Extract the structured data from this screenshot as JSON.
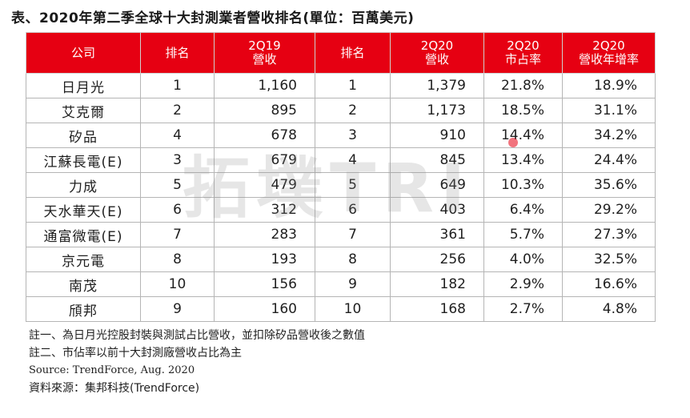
{
  "title": "表、2020年第二季全球十大封測業者營收排名(單位：百萬美元)",
  "headers": [
    [
      "公司"
    ],
    [
      "排名"
    ],
    [
      "2Q19",
      "營收"
    ],
    [
      "排名"
    ],
    [
      "2Q20",
      "營收"
    ],
    [
      "2Q20",
      "市占率"
    ],
    [
      "2Q20",
      "營收年增率"
    ]
  ],
  "rows": [
    {
      "company": "日月光",
      "rank_2q19": "1",
      "rev_2q19": "1,160",
      "rank_2q20": "1",
      "rev_2q20": "1,379",
      "share": "21.8%",
      "yoy": "18.9%"
    },
    {
      "company": "艾克爾",
      "rank_2q19": "2",
      "rev_2q19": "895",
      "rank_2q20": "2",
      "rev_2q20": "1,173",
      "share": "18.5%",
      "yoy": "31.1%"
    },
    {
      "company": "矽品",
      "rank_2q19": "4",
      "rev_2q19": "678",
      "rank_2q20": "3",
      "rev_2q20": "910",
      "share": "14.4%",
      "yoy": "34.2%"
    },
    {
      "company": "江蘇長電(E)",
      "rank_2q19": "3",
      "rev_2q19": "679",
      "rank_2q20": "4",
      "rev_2q20": "845",
      "share": "13.4%",
      "yoy": "24.4%"
    },
    {
      "company": "力成",
      "rank_2q19": "5",
      "rev_2q19": "479",
      "rank_2q20": "5",
      "rev_2q20": "649",
      "share": "10.3%",
      "yoy": "35.6%"
    },
    {
      "company": "天水華天(E)",
      "rank_2q19": "6",
      "rev_2q19": "312",
      "rank_2q20": "6",
      "rev_2q20": "403",
      "share": "6.4%",
      "yoy": "29.2%"
    },
    {
      "company": "通富微電(E)",
      "rank_2q19": "7",
      "rev_2q19": "283",
      "rank_2q20": "7",
      "rev_2q20": "361",
      "share": "5.7%",
      "yoy": "27.3%"
    },
    {
      "company": "京元電",
      "rank_2q19": "8",
      "rev_2q19": "193",
      "rank_2q20": "8",
      "rev_2q20": "256",
      "share": "4.0%",
      "yoy": "32.5%"
    },
    {
      "company": "南茂",
      "rank_2q19": "10",
      "rev_2q19": "156",
      "rank_2q20": "9",
      "rev_2q20": "182",
      "share": "2.9%",
      "yoy": "16.6%"
    },
    {
      "company": "頎邦",
      "rank_2q19": "9",
      "rev_2q19": "160",
      "rank_2q20": "10",
      "rev_2q20": "168",
      "share": "2.7%",
      "yoy": "4.8%"
    }
  ],
  "notes": {
    "note1": "註一、為日月光控股封裝與測試占比營收，並扣除矽品營收後之數值",
    "note2": "註二、市佔率以前十大封測廠營收占比為主",
    "source": "Source: TrendForce, Aug. 2020",
    "source_zh": "資料來源：集邦科技(TrendForce)"
  },
  "watermark": "拓墣TRI",
  "colors": {
    "header_bg": "#e60012",
    "header_text": "#ffffff",
    "border": "#b5b5b5"
  }
}
